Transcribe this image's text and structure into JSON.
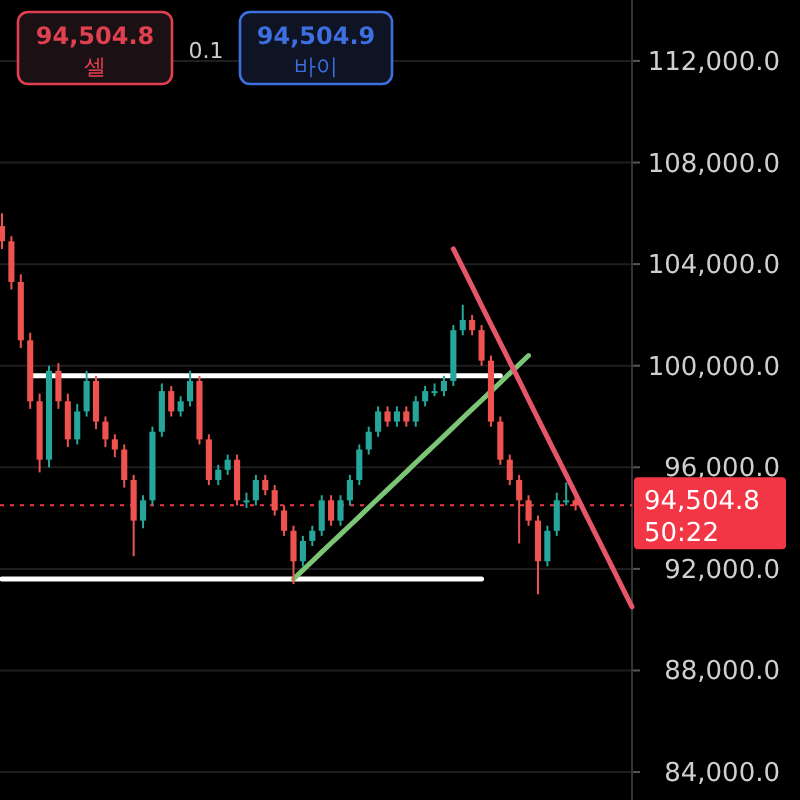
{
  "chart_data": {
    "type": "candlestick",
    "categories": [
      null,
      null,
      null,
      null,
      null,
      null,
      null,
      null,
      null,
      null,
      null,
      null,
      null,
      null,
      null,
      null,
      null,
      null,
      null,
      null,
      null,
      null,
      null,
      null,
      null,
      null,
      null,
      null,
      null,
      null,
      null,
      null,
      null,
      null,
      null,
      null,
      null,
      null,
      null,
      null,
      null,
      null,
      null,
      null,
      null,
      null,
      null,
      null,
      null,
      null,
      null,
      null,
      null,
      null,
      null,
      null,
      null,
      null,
      null,
      null,
      null,
      null,
      null,
      null,
      null,
      null,
      null,
      null
    ],
    "ohlc": [
      [
        105500,
        106000,
        104600,
        104900
      ],
      [
        104900,
        105100,
        103000,
        103300
      ],
      [
        103300,
        103600,
        100700,
        101000
      ],
      [
        101000,
        101300,
        98300,
        98600
      ],
      [
        98600,
        98900,
        95800,
        96300
      ],
      [
        96300,
        100000,
        96000,
        99800
      ],
      [
        99800,
        100100,
        98300,
        98600
      ],
      [
        98600,
        98900,
        96800,
        97100
      ],
      [
        97100,
        98500,
        96900,
        98200
      ],
      [
        98200,
        99800,
        98000,
        99400
      ],
      [
        99400,
        99600,
        97500,
        97800
      ],
      [
        97800,
        98000,
        96800,
        97100
      ],
      [
        97100,
        97300,
        96400,
        96700
      ],
      [
        96700,
        96900,
        95200,
        95500
      ],
      [
        95500,
        95700,
        92500,
        93900
      ],
      [
        93900,
        94900,
        93600,
        94700
      ],
      [
        94700,
        97600,
        94500,
        97400
      ],
      [
        97400,
        99300,
        97200,
        99000
      ],
      [
        99000,
        99200,
        98000,
        98200
      ],
      [
        98200,
        98800,
        98000,
        98600
      ],
      [
        98600,
        99800,
        98400,
        99400
      ],
      [
        99400,
        99600,
        96900,
        97100
      ],
      [
        97100,
        97300,
        95300,
        95500
      ],
      [
        95500,
        96100,
        95300,
        95900
      ],
      [
        95900,
        96500,
        95700,
        96300
      ],
      [
        96300,
        96500,
        94500,
        94700
      ],
      [
        94700,
        95000,
        94400,
        94700
      ],
      [
        94700,
        95700,
        94500,
        95500
      ],
      [
        95500,
        95700,
        94900,
        95100
      ],
      [
        95100,
        95300,
        94100,
        94300
      ],
      [
        94300,
        94500,
        93300,
        93500
      ],
      [
        93500,
        93700,
        91400,
        92300
      ],
      [
        92300,
        93300,
        92100,
        93100
      ],
      [
        93100,
        93700,
        92900,
        93500
      ],
      [
        93500,
        94900,
        93300,
        94700
      ],
      [
        94700,
        94900,
        93700,
        93900
      ],
      [
        93900,
        94900,
        93700,
        94700
      ],
      [
        94700,
        95700,
        94500,
        95500
      ],
      [
        95500,
        96900,
        95300,
        96700
      ],
      [
        96700,
        97600,
        96500,
        97400
      ],
      [
        97400,
        98400,
        97200,
        98200
      ],
      [
        98200,
        98400,
        97600,
        97800
      ],
      [
        97800,
        98400,
        97600,
        98200
      ],
      [
        98200,
        98400,
        97600,
        97800
      ],
      [
        97800,
        98800,
        97600,
        98600
      ],
      [
        98600,
        99200,
        98400,
        99000
      ],
      [
        99000,
        99300,
        98800,
        99000
      ],
      [
        99000,
        99600,
        98800,
        99400
      ],
      [
        99400,
        101600,
        99200,
        101400
      ],
      [
        101400,
        102400,
        101200,
        101800
      ],
      [
        101800,
        102000,
        101200,
        101400
      ],
      [
        101400,
        101600,
        100000,
        100200
      ],
      [
        100200,
        100400,
        97600,
        97800
      ],
      [
        97800,
        98000,
        96100,
        96300
      ],
      [
        96300,
        96500,
        95300,
        95500
      ],
      [
        95500,
        95700,
        93000,
        94700
      ],
      [
        94700,
        94900,
        93700,
        93900
      ],
      [
        93900,
        94100,
        91000,
        92300
      ],
      [
        92300,
        93700,
        92100,
        93500
      ],
      [
        93500,
        95000,
        93300,
        94700
      ],
      [
        94700,
        95400,
        94500,
        94700
      ],
      [
        94700,
        94900,
        94300,
        94500
      ],
      null,
      null,
      null,
      null,
      null,
      null
    ],
    "colors": [
      "#ef5350",
      "#ef5350",
      "#ef5350",
      "#ef5350",
      "#ef5350",
      "#26a69a",
      "#ef5350",
      "#ef5350",
      "#26a69a",
      "#26a69a",
      "#ef5350",
      "#ef5350",
      "#ef5350",
      "#ef5350",
      "#ef5350",
      "#26a69a",
      "#26a69a",
      "#26a69a",
      "#ef5350",
      "#26a69a",
      "#26a69a",
      "#ef5350",
      "#ef5350",
      "#26a69a",
      "#26a69a",
      "#ef5350",
      "#26a69a",
      "#26a69a",
      "#ef5350",
      "#ef5350",
      "#ef5350",
      "#ef5350",
      "#26a69a",
      "#26a69a",
      "#26a69a",
      "#ef5350",
      "#26a69a",
      "#26a69a",
      "#26a69a",
      "#26a69a",
      "#26a69a",
      "#ef5350",
      "#26a69a",
      "#ef5350",
      "#26a69a",
      "#26a69a",
      "#26a69a",
      "#26a69a",
      "#26a69a",
      "#26a69a",
      "#ef5350",
      "#ef5350",
      "#ef5350",
      "#ef5350",
      "#ef5350",
      "#ef5350",
      "#ef5350",
      "#ef5350",
      "#26a69a",
      "#26a69a",
      "#26a69a",
      "#ef5350",
      null,
      null,
      null,
      null,
      null,
      null
    ],
    "series": [
      {
        "type": "line",
        "color": "#ffffff",
        "values": [
          null,
          null,
          null,
          99600,
          99600,
          99600,
          99600,
          99600,
          99600,
          99600,
          99600,
          99600,
          99600,
          99600,
          99600,
          99600,
          99600,
          99600,
          99600,
          99600,
          99600,
          99600,
          99600,
          99600,
          99600,
          99600,
          99600,
          99600,
          99600,
          99600,
          99600,
          99600,
          99600,
          99600,
          99600,
          99600,
          99600,
          99600,
          99600,
          99600,
          99600,
          99600,
          99600,
          99600,
          99600,
          99600,
          99600,
          99600,
          99600,
          99600,
          99600,
          99600,
          99600,
          99600,
          null,
          null,
          null,
          null,
          null,
          null,
          null,
          null,
          null,
          null,
          null,
          null,
          null,
          null
        ]
      },
      {
        "type": "line",
        "color": "#ffffff",
        "values": [
          91600,
          91600,
          91600,
          91600,
          91600,
          91600,
          91600,
          91600,
          91600,
          91600,
          91600,
          91600,
          91600,
          91600,
          91600,
          91600,
          91600,
          91600,
          91600,
          91600,
          91600,
          91600,
          91600,
          91600,
          91600,
          91600,
          91600,
          91600,
          91600,
          91600,
          91600,
          91600,
          91600,
          91600,
          91600,
          91600,
          91600,
          91600,
          91600,
          91600,
          91600,
          91600,
          91600,
          91600,
          91600,
          91600,
          91600,
          91600,
          91600,
          91600,
          91600,
          91600,
          null,
          null,
          null,
          null,
          null,
          null,
          null,
          null,
          null,
          null,
          null,
          null,
          null,
          null,
          null,
          null
        ]
      },
      {
        "type": "line",
        "color": "#7cc576",
        "values": [
          null,
          null,
          null,
          null,
          null,
          null,
          null,
          null,
          null,
          null,
          null,
          null,
          null,
          null,
          null,
          null,
          null,
          null,
          null,
          null,
          null,
          null,
          null,
          null,
          null,
          null,
          null,
          null,
          null,
          null,
          null,
          91600,
          91950,
          92300,
          92660,
          93010,
          93360,
          93710,
          94060,
          94420,
          94770,
          95120,
          95470,
          95820,
          96180,
          96530,
          96880,
          97230,
          97580,
          97940,
          98290,
          98640,
          98990,
          99340,
          99700,
          100050,
          100400,
          null,
          null,
          null,
          null,
          null,
          null,
          null,
          null,
          null,
          null,
          null
        ]
      },
      {
        "type": "line",
        "color": "#e5566a",
        "values": [
          null,
          null,
          null,
          null,
          null,
          null,
          null,
          null,
          null,
          null,
          null,
          null,
          null,
          null,
          null,
          null,
          null,
          null,
          null,
          null,
          null,
          null,
          null,
          null,
          null,
          null,
          null,
          null,
          null,
          null,
          null,
          null,
          null,
          null,
          null,
          null,
          null,
          null,
          null,
          null,
          null,
          null,
          null,
          null,
          null,
          null,
          null,
          null,
          104600,
          103860,
          103120,
          102370,
          101630,
          100890,
          100150,
          99410,
          98660,
          97920,
          97180,
          96440,
          95700,
          94950,
          94210,
          93470,
          92730,
          91990,
          91240,
          90500
        ]
      }
    ],
    "ylim": [
      82900,
      114400
    ],
    "yticks": [
      {
        "value": 84000,
        "label": "84,000.0"
      },
      {
        "value": 88000,
        "label": "88,000.0"
      },
      {
        "value": 92000,
        "label": "92,000.0"
      },
      {
        "value": 96000,
        "label": "96,000.0"
      },
      {
        "value": 100000,
        "label": "100,000.0"
      },
      {
        "value": 104000,
        "label": "104,000.0"
      },
      {
        "value": 108000,
        "label": "108,000.0"
      },
      {
        "value": 112000,
        "label": "112,000.0"
      }
    ],
    "tick_labels": "y",
    "grid": "y",
    "ref_lines": [
      {
        "axis": "y",
        "value": 94504.8,
        "label": "94,504.8",
        "color": "#f23645",
        "line_style": "dotted"
      }
    ],
    "annotations": [
      "50:22",
      "94,504.8",
      "셀",
      "0.1",
      "94,504.9",
      "바이"
    ]
  }
}
